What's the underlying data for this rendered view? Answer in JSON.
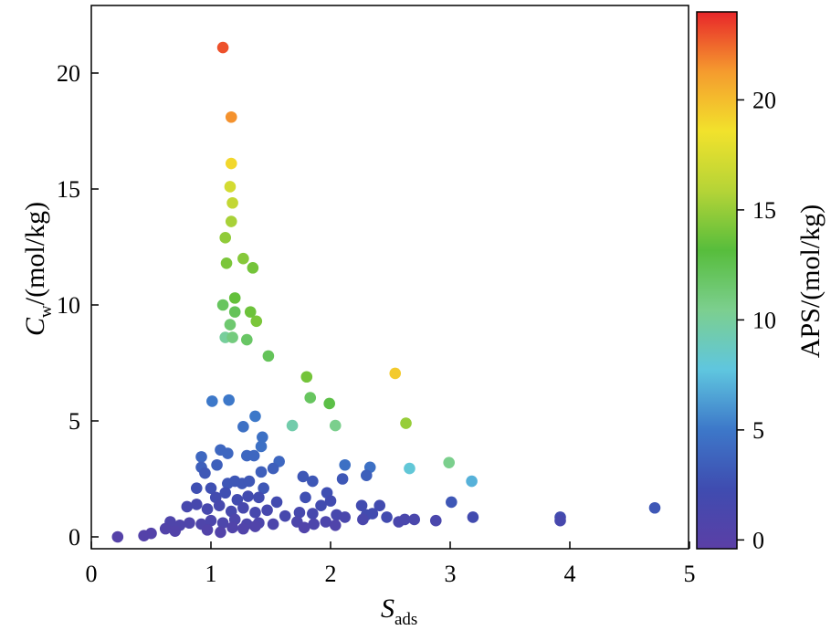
{
  "chart_data": {
    "type": "scatter",
    "xlabel": {
      "main": "S",
      "sub": "ads"
    },
    "ylabel": {
      "main": "C",
      "sub": "w",
      "rest": "/(mol/kg)"
    },
    "colorbar_label": "APS/(mol/kg)",
    "xlim": [
      0,
      5
    ],
    "ylim": [
      -0.5,
      23
    ],
    "xticks": [
      0,
      1,
      2,
      3,
      4,
      5
    ],
    "yticks": [
      0,
      5,
      10,
      15,
      20
    ],
    "colorbar_range": [
      -0.4,
      24
    ],
    "colorbar_ticks": [
      0,
      5,
      10,
      15,
      20
    ],
    "colormap": [
      "#5b3fa6",
      "#3f4cb0",
      "#3d78c9",
      "#5fc6df",
      "#7ccf8f",
      "#57bd3c",
      "#b5d437",
      "#f2e22c",
      "#f59b2e",
      "#e8262a"
    ],
    "points": [
      [
        1.1,
        21.1,
        23.0
      ],
      [
        1.17,
        18.1,
        21.5
      ],
      [
        1.17,
        16.1,
        19.0
      ],
      [
        1.16,
        15.1,
        17.2
      ],
      [
        1.18,
        14.4,
        16.5
      ],
      [
        1.17,
        13.6,
        15.5
      ],
      [
        1.12,
        12.9,
        14.8
      ],
      [
        1.27,
        12.0,
        14.5
      ],
      [
        1.13,
        11.8,
        14.2
      ],
      [
        1.35,
        11.6,
        14.0
      ],
      [
        1.2,
        10.3,
        13.5
      ],
      [
        1.1,
        10.0,
        12.0
      ],
      [
        1.2,
        9.7,
        12.2
      ],
      [
        1.33,
        9.7,
        13.8
      ],
      [
        1.38,
        9.3,
        14.2
      ],
      [
        1.16,
        9.15,
        11.5
      ],
      [
        1.12,
        8.6,
        10.0
      ],
      [
        1.18,
        8.6,
        11.0
      ],
      [
        1.3,
        8.5,
        11.8
      ],
      [
        1.48,
        7.8,
        12.2
      ],
      [
        1.8,
        6.9,
        14.0
      ],
      [
        2.54,
        7.05,
        19.5
      ],
      [
        1.83,
        6.0,
        12.0
      ],
      [
        1.99,
        5.75,
        12.8
      ],
      [
        2.63,
        4.9,
        15.0
      ],
      [
        1.68,
        4.8,
        9.5
      ],
      [
        2.04,
        4.8,
        10.5
      ],
      [
        2.99,
        3.2,
        10.5
      ],
      [
        2.66,
        2.95,
        8.0
      ],
      [
        3.18,
        2.4,
        7.0
      ],
      [
        1.01,
        5.85,
        5.0
      ],
      [
        1.15,
        5.9,
        5.0
      ],
      [
        1.37,
        5.2,
        5.0
      ],
      [
        1.27,
        4.75,
        4.5
      ],
      [
        1.43,
        4.3,
        4.5
      ],
      [
        1.42,
        3.9,
        4.5
      ],
      [
        0.92,
        3.45,
        4.0
      ],
      [
        1.08,
        3.75,
        4.0
      ],
      [
        1.14,
        3.6,
        4.0
      ],
      [
        1.3,
        3.5,
        4.0
      ],
      [
        1.36,
        3.5,
        4.0
      ],
      [
        1.57,
        3.25,
        4.0
      ],
      [
        0.92,
        3.0,
        3.5
      ],
      [
        1.05,
        3.1,
        3.5
      ],
      [
        1.52,
        2.95,
        3.5
      ],
      [
        2.12,
        3.1,
        4.5
      ],
      [
        2.33,
        3.0,
        4.5
      ],
      [
        1.42,
        2.8,
        3.5
      ],
      [
        0.95,
        2.75,
        3.0
      ],
      [
        1.77,
        2.6,
        3.0
      ],
      [
        2.3,
        2.65,
        3.5
      ],
      [
        1.85,
        2.4,
        3.0
      ],
      [
        2.1,
        2.5,
        3.0
      ],
      [
        0.88,
        2.1,
        2.5
      ],
      [
        1.0,
        2.1,
        2.5
      ],
      [
        1.14,
        2.3,
        3.0
      ],
      [
        1.2,
        2.4,
        3.0
      ],
      [
        1.26,
        2.3,
        3.0
      ],
      [
        1.32,
        2.4,
        3.0
      ],
      [
        1.44,
        2.1,
        3.0
      ],
      [
        1.04,
        1.7,
        2.0
      ],
      [
        1.12,
        1.9,
        2.5
      ],
      [
        1.22,
        1.6,
        2.0
      ],
      [
        1.31,
        1.75,
        2.0
      ],
      [
        1.4,
        1.7,
        2.0
      ],
      [
        1.55,
        1.5,
        2.0
      ],
      [
        1.79,
        1.7,
        2.5
      ],
      [
        1.97,
        1.9,
        2.5
      ],
      [
        2.0,
        1.55,
        2.0
      ],
      [
        1.92,
        1.35,
        2.0
      ],
      [
        2.26,
        1.35,
        2.0
      ],
      [
        2.41,
        1.35,
        2.0
      ],
      [
        3.01,
        1.5,
        3.0
      ],
      [
        4.71,
        1.25,
        3.0
      ],
      [
        0.8,
        1.3,
        1.5
      ],
      [
        0.88,
        1.4,
        1.5
      ],
      [
        0.97,
        1.2,
        1.5
      ],
      [
        1.07,
        1.35,
        1.5
      ],
      [
        1.17,
        1.1,
        1.5
      ],
      [
        1.27,
        1.25,
        1.5
      ],
      [
        1.37,
        1.05,
        1.5
      ],
      [
        1.47,
        1.15,
        1.5
      ],
      [
        1.62,
        0.9,
        1.5
      ],
      [
        1.74,
        1.05,
        1.5
      ],
      [
        1.85,
        1.0,
        1.5
      ],
      [
        2.05,
        0.95,
        1.5
      ],
      [
        2.3,
        0.95,
        2.0
      ],
      [
        2.35,
        1.0,
        2.0
      ],
      [
        2.47,
        0.85,
        2.0
      ],
      [
        3.19,
        0.85,
        2.0
      ],
      [
        3.92,
        0.85,
        2.0
      ],
      [
        3.92,
        0.7,
        1.5
      ],
      [
        0.66,
        0.65,
        0.8
      ],
      [
        0.74,
        0.5,
        0.8
      ],
      [
        0.82,
        0.6,
        0.8
      ],
      [
        0.92,
        0.55,
        0.8
      ],
      [
        1.0,
        0.7,
        1.0
      ],
      [
        1.1,
        0.6,
        1.0
      ],
      [
        1.2,
        0.75,
        1.0
      ],
      [
        1.3,
        0.55,
        1.0
      ],
      [
        1.4,
        0.6,
        1.0
      ],
      [
        1.52,
        0.55,
        1.0
      ],
      [
        1.72,
        0.65,
        1.0
      ],
      [
        1.86,
        0.55,
        1.0
      ],
      [
        1.96,
        0.65,
        1.0
      ],
      [
        2.12,
        0.85,
        1.2
      ],
      [
        2.27,
        0.75,
        1.2
      ],
      [
        2.57,
        0.65,
        1.2
      ],
      [
        2.62,
        0.75,
        1.2
      ],
      [
        2.7,
        0.75,
        1.2
      ],
      [
        2.88,
        0.7,
        1.2
      ],
      [
        0.62,
        0.35,
        0.5
      ],
      [
        0.7,
        0.25,
        0.5
      ],
      [
        0.97,
        0.3,
        0.5
      ],
      [
        1.08,
        0.2,
        0.5
      ],
      [
        1.18,
        0.4,
        0.6
      ],
      [
        1.27,
        0.35,
        0.6
      ],
      [
        1.37,
        0.45,
        0.6
      ],
      [
        1.78,
        0.4,
        0.6
      ],
      [
        2.04,
        0.5,
        0.7
      ],
      [
        0.22,
        0.0,
        0.2
      ],
      [
        0.44,
        0.05,
        0.3
      ],
      [
        0.5,
        0.15,
        0.3
      ]
    ]
  }
}
